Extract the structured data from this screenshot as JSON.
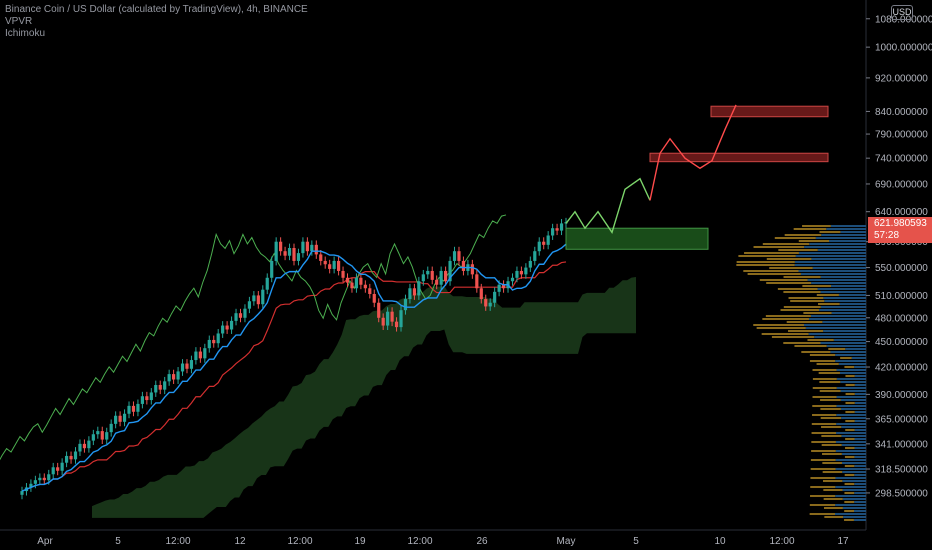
{
  "legend": {
    "symbol": "Binance Coin / US Dollar (calculated by TradingView), 4h, BINANCE",
    "indicator1": "VPVR",
    "indicator2": "Ichimoku"
  },
  "currency_badge": "USD",
  "price_badge": {
    "price": "621.980593",
    "countdown": "57:28"
  },
  "chart_data": {
    "type": "candlestick",
    "scale": "log",
    "ylim": [
      285,
      1100
    ],
    "y_ticks": [
      "1080.000000",
      "1000.000000",
      "920.000000",
      "840.000000",
      "790.000000",
      "740.000000",
      "690.000000",
      "640.000000",
      "590.000000",
      "550.000000",
      "510.000000",
      "480.000000",
      "450.000000",
      "420.000000",
      "390.000000",
      "365.000000",
      "341.000000",
      "318.500000",
      "298.500000"
    ],
    "x_ticks": [
      "Apr",
      "5",
      "12:00",
      "12",
      "12:00",
      "19",
      "12:00",
      "26",
      "May",
      "5",
      "10",
      "12:00",
      "17"
    ],
    "last_price": 621.98,
    "zones": [
      {
        "color": "green",
        "low": 578,
        "high": 612
      },
      {
        "color": "red",
        "low": 733,
        "high": 750
      },
      {
        "color": "red",
        "low": 828,
        "high": 852
      }
    ],
    "price_path": [
      {
        "name": "close",
        "values": [
          300,
          303,
          306,
          309,
          311,
          309,
          314,
          320,
          317,
          324,
          330,
          327,
          334,
          341,
          337,
          344,
          350,
          353,
          345,
          352,
          360,
          368,
          362,
          370,
          378,
          372,
          380,
          388,
          384,
          392,
          400,
          395,
          404,
          412,
          406,
          415,
          424,
          418,
          428,
          438,
          430,
          442,
          452,
          448,
          460,
          470,
          465,
          476,
          486,
          480,
          492,
          502,
          510,
          498,
          518,
          535,
          560,
          590,
          575,
          568,
          580,
          560,
          572,
          590,
          575,
          585,
          570,
          560,
          555,
          548,
          560,
          545,
          535,
          528,
          520,
          535,
          525,
          520,
          512,
          500,
          480,
          470,
          488,
          475,
          468,
          490,
          505,
          520,
          510,
          530,
          540,
          545,
          532,
          525,
          545,
          530,
          560,
          575,
          560,
          545,
          555,
          540,
          520,
          505,
          495,
          500,
          515,
          525,
          520,
          530,
          535,
          545,
          540,
          550,
          560,
          575,
          590,
          585,
          600,
          612,
          608,
          620,
          622
        ]
      }
    ],
    "candle_count": 123
  }
}
